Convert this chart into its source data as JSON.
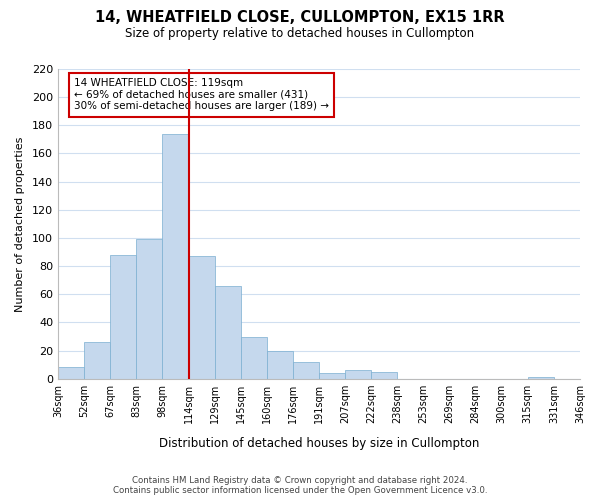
{
  "title": "14, WHEATFIELD CLOSE, CULLOMPTON, EX15 1RR",
  "subtitle": "Size of property relative to detached houses in Cullompton",
  "xlabel": "Distribution of detached houses by size in Cullompton",
  "ylabel": "Number of detached properties",
  "bin_edges": [
    "36sqm",
    "52sqm",
    "67sqm",
    "83sqm",
    "98sqm",
    "114sqm",
    "129sqm",
    "145sqm",
    "160sqm",
    "176sqm",
    "191sqm",
    "207sqm",
    "222sqm",
    "238sqm",
    "253sqm",
    "269sqm",
    "284sqm",
    "300sqm",
    "315sqm",
    "331sqm",
    "346sqm"
  ],
  "bar_values": [
    8,
    26,
    88,
    99,
    174,
    87,
    66,
    30,
    20,
    12,
    4,
    6,
    5,
    0,
    0,
    0,
    0,
    0,
    1,
    0
  ],
  "bar_color": "#c5d8ed",
  "bar_edge_color": "#7aaed0",
  "highlight_line_index": 5,
  "highlight_line_color": "#cc0000",
  "annotation_title": "14 WHEATFIELD CLOSE: 119sqm",
  "annotation_line1": "← 69% of detached houses are smaller (431)",
  "annotation_line2": "30% of semi-detached houses are larger (189) →",
  "annotation_box_color": "#ffffff",
  "annotation_box_edge": "#cc0000",
  "ylim": [
    0,
    220
  ],
  "yticks": [
    0,
    20,
    40,
    60,
    80,
    100,
    120,
    140,
    160,
    180,
    200,
    220
  ],
  "footer_line1": "Contains HM Land Registry data © Crown copyright and database right 2024.",
  "footer_line2": "Contains public sector information licensed under the Open Government Licence v3.0.",
  "background_color": "#ffffff",
  "grid_color": "#d0dff0"
}
